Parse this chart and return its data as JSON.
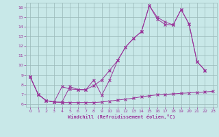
{
  "xlabel": "Windchill (Refroidissement éolien,°C)",
  "bg_color": "#c8e8e8",
  "grid_color": "#9ab8b8",
  "line_color": "#993399",
  "xlim": [
    -0.5,
    23.5
  ],
  "ylim": [
    5.7,
    16.5
  ],
  "xticks": [
    0,
    1,
    2,
    3,
    4,
    5,
    6,
    7,
    8,
    9,
    10,
    11,
    12,
    13,
    14,
    15,
    16,
    17,
    18,
    19,
    20,
    21,
    22,
    23
  ],
  "yticks": [
    6,
    7,
    8,
    9,
    10,
    11,
    12,
    13,
    14,
    15,
    16
  ],
  "line1_x": [
    0,
    1,
    2,
    3,
    4,
    5,
    6,
    7,
    8,
    9,
    10,
    11,
    12,
    13,
    14,
    15,
    16,
    17,
    18,
    19,
    20,
    21,
    22,
    23
  ],
  "line1_y": [
    8.8,
    7.0,
    6.35,
    6.2,
    6.15,
    6.15,
    6.15,
    6.15,
    6.15,
    6.2,
    6.3,
    6.4,
    6.5,
    6.6,
    6.75,
    6.85,
    6.95,
    7.0,
    7.05,
    7.1,
    7.15,
    7.2,
    7.25,
    7.3
  ],
  "line2_x": [
    0,
    1,
    2,
    3,
    4,
    5,
    6,
    7,
    8,
    9,
    10,
    11,
    12,
    13,
    14,
    15,
    16,
    17,
    18,
    19,
    20,
    21,
    22,
    23
  ],
  "line2_y": [
    8.8,
    7.0,
    6.35,
    6.2,
    7.8,
    7.55,
    7.5,
    7.45,
    8.5,
    6.9,
    8.5,
    10.5,
    11.9,
    12.8,
    13.5,
    16.2,
    14.8,
    14.25,
    14.2,
    15.8,
    14.3,
    10.4,
    9.5,
    null
  ],
  "line3_x": [
    0,
    1,
    2,
    3,
    4,
    5,
    6,
    7,
    8,
    9,
    10,
    11,
    12,
    13,
    14,
    15,
    16,
    17,
    18,
    19,
    20,
    21,
    22,
    23
  ],
  "line3_y": [
    8.8,
    7.0,
    6.35,
    6.2,
    6.2,
    7.8,
    7.5,
    7.5,
    7.9,
    8.5,
    9.5,
    10.5,
    11.9,
    12.8,
    13.5,
    16.2,
    15.0,
    14.5,
    14.2,
    15.8,
    14.3,
    10.4,
    9.5,
    null
  ]
}
